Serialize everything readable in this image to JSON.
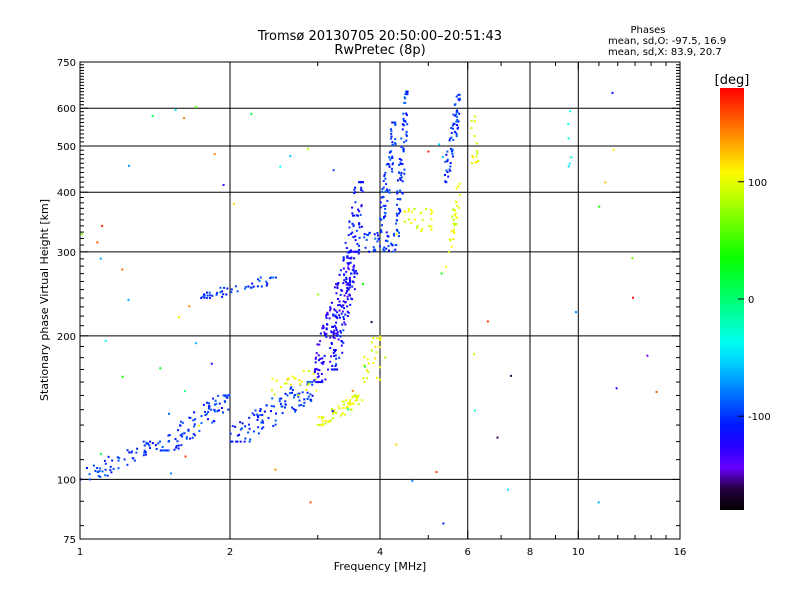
{
  "chart_data": {
    "type": "scatter",
    "title": "Tromsø 20130705 20:50:00–20:51:43",
    "subtitle": "RwPretec (8p)",
    "xlabel": "Frequency [MHz]",
    "ylabel": "Stationary phase Virtual Height [km]",
    "xscale": "log",
    "yscale": "log",
    "xlim": [
      1,
      16
    ],
    "ylim": [
      75,
      750
    ],
    "x_ticks": [
      1,
      2,
      4,
      6,
      8,
      10,
      16
    ],
    "y_ticks": [
      75,
      100,
      200,
      300,
      400,
      500,
      600,
      750
    ],
    "x_gridlines": [
      2,
      4,
      6,
      8,
      10
    ],
    "y_gridlines": [
      100,
      200,
      300,
      400,
      500,
      600
    ],
    "grid": true,
    "stats": {
      "heading": "Phases",
      "line_o": "mean, sd,O: -97.5, 16.9",
      "line_x": "mean, sd,X:  83.9, 20.7"
    },
    "colorbar": {
      "label": "[deg]",
      "range": [
        -180,
        180
      ],
      "ticks": [
        -100,
        0,
        100
      ],
      "placement": "right"
    },
    "clusters": [
      {
        "x": [
          1.0,
          1.45
        ],
        "y": [
          100,
          120
        ],
        "phase": -100,
        "n": 60,
        "trend": 1
      },
      {
        "x": [
          1.45,
          2.0
        ],
        "y": [
          115,
          150
        ],
        "phase": -100,
        "n": 90,
        "trend": 1
      },
      {
        "x": [
          2.0,
          3.0
        ],
        "y": [
          120,
          160
        ],
        "phase": -100,
        "n": 110,
        "trend": 1
      },
      {
        "x": [
          1.75,
          2.5
        ],
        "y": [
          240,
          265
        ],
        "phase": -100,
        "n": 45,
        "trend": 1
      },
      {
        "x": [
          2.4,
          3.0
        ],
        "y": [
          150,
          170
        ],
        "phase": 100,
        "n": 25,
        "trend": 0
      },
      {
        "x": [
          2.95,
          3.6
        ],
        "y": [
          160,
          300
        ],
        "phase": -125,
        "n": 160,
        "trend": 1
      },
      {
        "x": [
          3.2,
          3.7
        ],
        "y": [
          170,
          420
        ],
        "phase": -110,
        "n": 140,
        "trend": 1
      },
      {
        "x": [
          3.0,
          3.7
        ],
        "y": [
          130,
          150
        ],
        "phase": 100,
        "n": 60,
        "trend": 1
      },
      {
        "x": [
          3.7,
          4.1
        ],
        "y": [
          160,
          200
        ],
        "phase": 100,
        "n": 25,
        "trend": 0
      },
      {
        "x": [
          3.7,
          4.3
        ],
        "y": [
          300,
          330
        ],
        "phase": -100,
        "n": 40,
        "trend": 0
      },
      {
        "x": [
          4.0,
          4.3
        ],
        "y": [
          330,
          560
        ],
        "phase": -100,
        "n": 70,
        "trend": 1
      },
      {
        "x": [
          4.3,
          4.55
        ],
        "y": [
          310,
          650
        ],
        "phase": -100,
        "n": 80,
        "trend": 1
      },
      {
        "x": [
          4.4,
          5.1
        ],
        "y": [
          330,
          370
        ],
        "phase": 100,
        "n": 25,
        "trend": 0
      },
      {
        "x": [
          5.5,
          5.8
        ],
        "y": [
          300,
          420
        ],
        "phase": 100,
        "n": 30,
        "trend": 1
      },
      {
        "x": [
          5.4,
          5.8
        ],
        "y": [
          420,
          640
        ],
        "phase": -100,
        "n": 60,
        "trend": 1
      },
      {
        "x": [
          6.1,
          6.3
        ],
        "y": [
          440,
          580
        ],
        "phase": 100,
        "n": 15,
        "trend": 0
      },
      {
        "x": [
          9.5,
          9.7
        ],
        "y": [
          440,
          610
        ],
        "phase": -40,
        "n": 6,
        "trend": 0
      }
    ],
    "scatter_noise": {
      "x": [
        1.0,
        16
      ],
      "y": [
        80,
        650
      ],
      "n": 70
    }
  }
}
